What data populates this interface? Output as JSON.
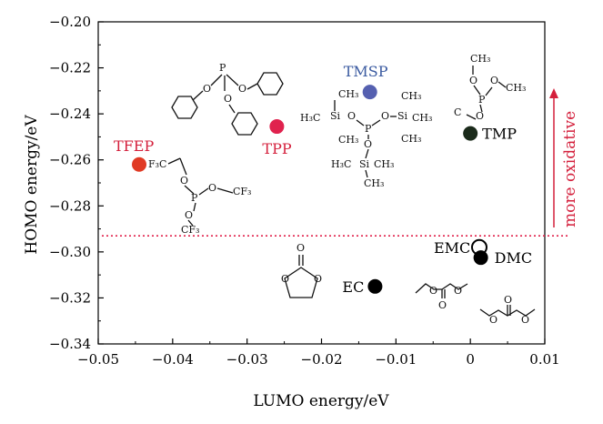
{
  "chart_data": {
    "type": "scatter",
    "title": "",
    "xlabel": "LUMO energy/eV",
    "ylabel": "HOMO energy/eV",
    "xlim": [
      -0.05,
      0.01
    ],
    "ylim": [
      -0.34,
      -0.2
    ],
    "x_ticks": [
      "−0.05",
      "−0.04",
      "−0.03",
      "−0.02",
      "−0.01",
      "0",
      "0.01"
    ],
    "y_ticks": [
      "−0.20",
      "−0.22",
      "−0.24",
      "−0.26",
      "−0.28",
      "−0.30",
      "−0.32",
      "−0.34"
    ],
    "grid": false,
    "points": [
      {
        "label": "TFEP",
        "x": -0.0445,
        "y": -0.262,
        "color": "#e03a24",
        "label_color": "#d4203c"
      },
      {
        "label": "TPP",
        "x": -0.026,
        "y": -0.2455,
        "color": "#e0224e",
        "label_color": "#d4203c"
      },
      {
        "label": "TMSP",
        "x": -0.0135,
        "y": -0.2305,
        "color": "#5560b0",
        "label_color": "#3a5aa0"
      },
      {
        "label": "TMP",
        "x": 0.0,
        "y": -0.2485,
        "color": "#1a2a1a",
        "label_color": "#000000"
      },
      {
        "label": "EC",
        "x": -0.0128,
        "y": -0.315,
        "color": "#000000",
        "label_color": "#000000"
      },
      {
        "label": "EMC",
        "x": 0.0012,
        "y": -0.298,
        "color": "#000000",
        "label_color": "#000000",
        "hollow": true
      },
      {
        "label": "DMC",
        "x": 0.0014,
        "y": -0.3025,
        "color": "#000000",
        "label_color": "#000000"
      }
    ],
    "reference_line": {
      "y": -0.293,
      "color": "#e0204a",
      "style": "dotted"
    },
    "annotation": {
      "text": "more oxidative",
      "color": "#d4203c",
      "direction": "up"
    }
  }
}
